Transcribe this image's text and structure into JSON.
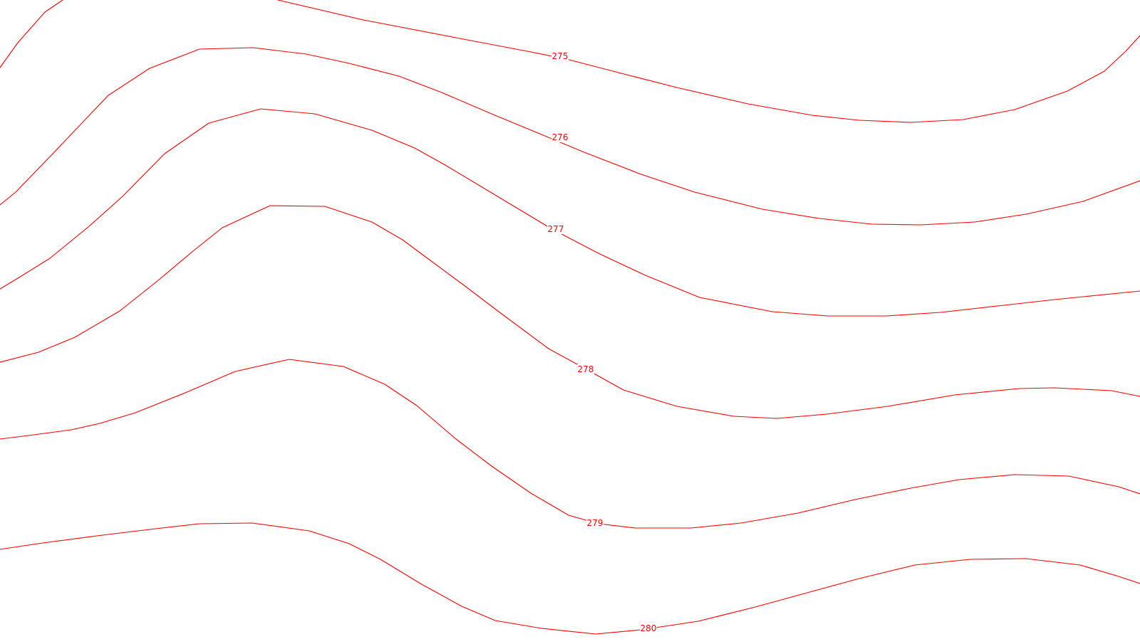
{
  "map": {
    "line_color": "#ff0000",
    "background": "#ffffff",
    "contours": [
      {
        "id": "c275",
        "value": 275,
        "label": "275"
      },
      {
        "id": "c276",
        "value": 276,
        "label": "276"
      },
      {
        "id": "c277",
        "value": 277,
        "label": "277"
      },
      {
        "id": "c278",
        "value": 278,
        "label": "278"
      },
      {
        "id": "c279",
        "value": 279,
        "label": "279"
      },
      {
        "id": "c280",
        "value": 280,
        "label": "280"
      }
    ]
  }
}
